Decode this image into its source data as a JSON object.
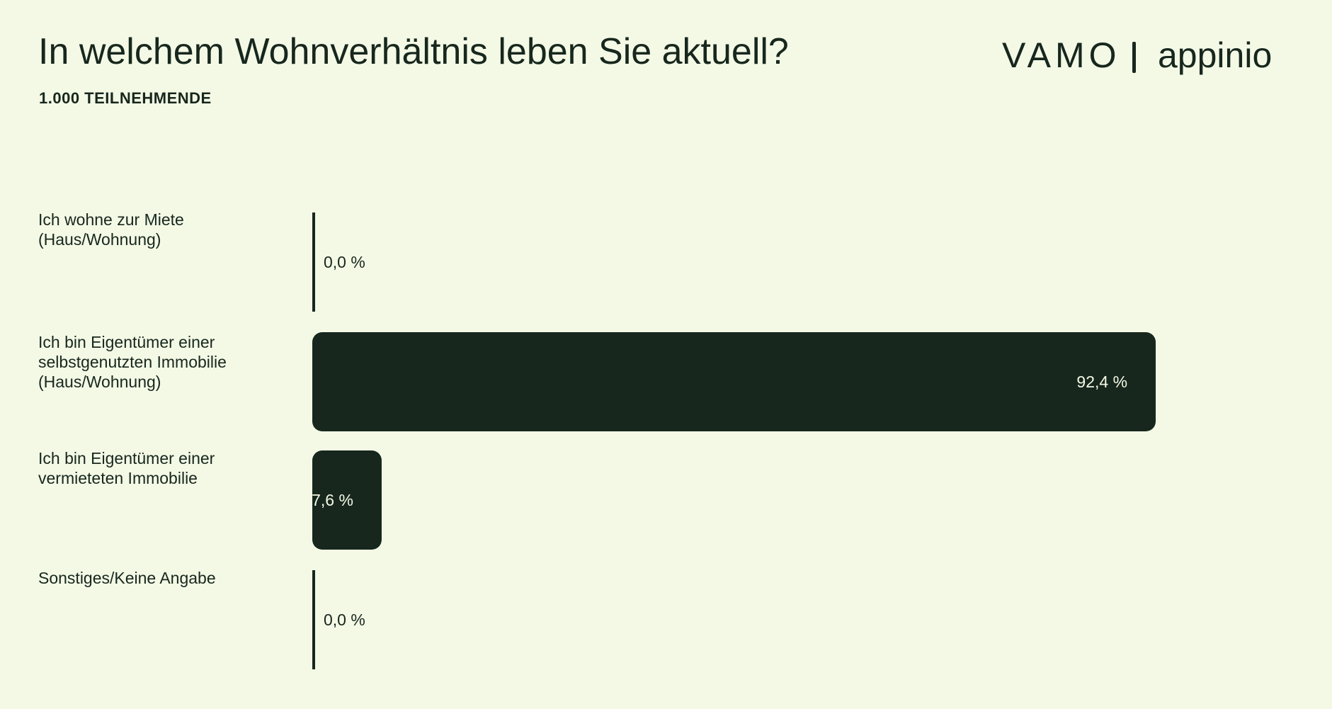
{
  "header": {
    "title": "In welchem Wohnverhältnis leben Sie aktuell?",
    "subtitle": "1.000 TEILNEHMENDE",
    "logo_left": "VAMO",
    "logo_right": "appinio"
  },
  "colors": {
    "background": "#f4f9e6",
    "bar": "#17271d",
    "text_on_bar": "#f4f9e6",
    "text": "#17271d"
  },
  "chart_data": {
    "type": "bar",
    "orientation": "horizontal",
    "categories": [
      "Ich wohne zur Miete\n(Haus/Wohnung)",
      "Ich bin Eigentümer einer\nselbstgenutzten Immobilie\n(Haus/Wohnung)",
      "Ich bin Eigentümer einer\nvermieteten Immobilie",
      "Sonstiges/Keine Angabe"
    ],
    "values": [
      0.0,
      92.4,
      7.6,
      0.0
    ],
    "value_labels": [
      "0,0 %",
      "92,4 %",
      "7,6 %",
      "0,0 %"
    ],
    "title": "In welchem Wohnverhältnis leben Sie aktuell?",
    "subtitle": "1.000 TEILNEHMENDE",
    "unit": "%",
    "xlim": [
      0,
      100
    ],
    "grid": false,
    "legend": "none"
  }
}
